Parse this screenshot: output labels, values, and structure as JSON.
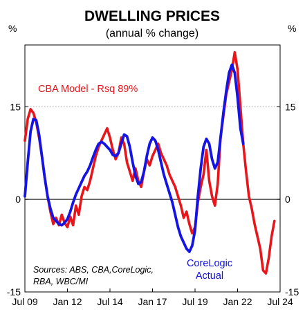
{
  "chart_data": {
    "type": "line",
    "title": "DWELLING PRICES",
    "subtitle": "(annual % change)",
    "ylabel_left": "%",
    "ylabel_right": "%",
    "ylim": [
      -15,
      25
    ],
    "yticks": [
      -15,
      0,
      15
    ],
    "ytick_labels": [
      "-15",
      "0",
      "15"
    ],
    "reference_line": 15,
    "x_start": "2009-07",
    "x_end": "2024-07",
    "xticks": [
      "2009-07",
      "2012-01",
      "2014-07",
      "2017-01",
      "2019-07",
      "2022-01",
      "2024-07"
    ],
    "xtick_labels": [
      "Jul 09",
      "Jan 12",
      "Jul 14",
      "Jan 17",
      "Jul 19",
      "Jan 22",
      "Jul 24"
    ],
    "annotations": {
      "model": "CBA Model - Rsq 89%",
      "actual_line1": "CoreLogic",
      "actual_line2": "Actual",
      "source_line1": "Sources: ABS, CBA,CoreLogic,",
      "source_line2": "RBA, WBC/MI"
    },
    "colors": {
      "model": "#e8161b",
      "actual": "#1414e6",
      "reference": "#a0a0a0"
    },
    "series": [
      {
        "name": "CBA Model - Rsq 89%",
        "color": "#e8161b",
        "points": [
          [
            "2009-07",
            9.5
          ],
          [
            "2009-09",
            13.0
          ],
          [
            "2009-11",
            14.6
          ],
          [
            "2010-01",
            14.0
          ],
          [
            "2010-03",
            12.5
          ],
          [
            "2010-05",
            10.0
          ],
          [
            "2010-07",
            7.0
          ],
          [
            "2010-09",
            3.5
          ],
          [
            "2010-11",
            0.5
          ],
          [
            "2011-01",
            -2.0
          ],
          [
            "2011-03",
            -4.0
          ],
          [
            "2011-05",
            -3.0
          ],
          [
            "2011-07",
            -4.2
          ],
          [
            "2011-09",
            -2.5
          ],
          [
            "2011-11",
            -3.8
          ],
          [
            "2012-01",
            -4.5
          ],
          [
            "2012-03",
            -2.8
          ],
          [
            "2012-05",
            -4.2
          ],
          [
            "2012-07",
            -1.0
          ],
          [
            "2012-09",
            -2.5
          ],
          [
            "2012-11",
            0.5
          ],
          [
            "2013-01",
            2.0
          ],
          [
            "2013-03",
            1.5
          ],
          [
            "2013-05",
            3.0
          ],
          [
            "2013-07",
            5.0
          ],
          [
            "2013-09",
            7.0
          ],
          [
            "2013-11",
            8.5
          ],
          [
            "2014-01",
            9.5
          ],
          [
            "2014-03",
            10.5
          ],
          [
            "2014-05",
            11.5
          ],
          [
            "2014-07",
            10.0
          ],
          [
            "2014-09",
            8.0
          ],
          [
            "2014-11",
            6.5
          ],
          [
            "2015-01",
            7.5
          ],
          [
            "2015-03",
            10.0
          ],
          [
            "2015-05",
            9.0
          ],
          [
            "2015-07",
            6.0
          ],
          [
            "2015-09",
            4.5
          ],
          [
            "2015-11",
            3.0
          ],
          [
            "2016-01",
            5.0
          ],
          [
            "2016-03",
            3.0
          ],
          [
            "2016-05",
            2.0
          ],
          [
            "2016-07",
            4.5
          ],
          [
            "2016-09",
            6.5
          ],
          [
            "2016-11",
            5.5
          ],
          [
            "2017-01",
            7.0
          ],
          [
            "2017-03",
            8.0
          ],
          [
            "2017-05",
            9.0
          ],
          [
            "2017-07",
            7.5
          ],
          [
            "2017-09",
            6.5
          ],
          [
            "2017-11",
            5.5
          ],
          [
            "2018-01",
            4.0
          ],
          [
            "2018-03",
            3.0
          ],
          [
            "2018-05",
            2.0
          ],
          [
            "2018-07",
            0.5
          ],
          [
            "2018-09",
            -1.0
          ],
          [
            "2018-11",
            -3.0
          ],
          [
            "2019-01",
            -2.0
          ],
          [
            "2019-03",
            -4.0
          ],
          [
            "2019-05",
            -5.5
          ],
          [
            "2019-07",
            -4.5
          ],
          [
            "2019-09",
            -0.5
          ],
          [
            "2019-11",
            2.0
          ],
          [
            "2020-01",
            4.0
          ],
          [
            "2020-03",
            8.0
          ],
          [
            "2020-05",
            3.0
          ],
          [
            "2020-07",
            0.5
          ],
          [
            "2020-09",
            -1.0
          ],
          [
            "2020-11",
            2.5
          ],
          [
            "2021-01",
            10.0
          ],
          [
            "2021-03",
            13.5
          ],
          [
            "2021-05",
            17.0
          ],
          [
            "2021-07",
            19.0
          ],
          [
            "2021-09",
            21.0
          ],
          [
            "2021-11",
            23.8
          ],
          [
            "2022-01",
            21.0
          ],
          [
            "2022-03",
            15.0
          ],
          [
            "2022-05",
            9.0
          ],
          [
            "2022-07",
            4.5
          ],
          [
            "2022-09",
            0.5
          ],
          [
            "2022-11",
            -1.5
          ],
          [
            "2023-01",
            -4.0
          ],
          [
            "2023-03",
            -6.0
          ],
          [
            "2023-05",
            -8.0
          ],
          [
            "2023-07",
            -11.5
          ],
          [
            "2023-09",
            -12.0
          ],
          [
            "2023-11",
            -9.5
          ],
          [
            "2024-01",
            -6.0
          ],
          [
            "2024-03",
            -3.5
          ]
        ]
      },
      {
        "name": "CoreLogic Actual",
        "color": "#1414e6",
        "points": [
          [
            "2009-07",
            0.5
          ],
          [
            "2009-09",
            6.0
          ],
          [
            "2009-11",
            11.0
          ],
          [
            "2010-01",
            13.0
          ],
          [
            "2010-03",
            12.8
          ],
          [
            "2010-05",
            10.5
          ],
          [
            "2010-07",
            7.0
          ],
          [
            "2010-09",
            3.5
          ],
          [
            "2010-11",
            0.5
          ],
          [
            "2011-01",
            -1.5
          ],
          [
            "2011-03",
            -3.0
          ],
          [
            "2011-05",
            -3.5
          ],
          [
            "2011-07",
            -4.0
          ],
          [
            "2011-09",
            -4.2
          ],
          [
            "2011-11",
            -3.8
          ],
          [
            "2012-01",
            -3.2
          ],
          [
            "2012-03",
            -2.0
          ],
          [
            "2012-05",
            -0.5
          ],
          [
            "2012-07",
            0.8
          ],
          [
            "2012-09",
            1.8
          ],
          [
            "2012-11",
            2.8
          ],
          [
            "2013-01",
            3.8
          ],
          [
            "2013-03",
            4.5
          ],
          [
            "2013-05",
            5.5
          ],
          [
            "2013-07",
            6.8
          ],
          [
            "2013-09",
            8.0
          ],
          [
            "2013-11",
            9.0
          ],
          [
            "2014-01",
            9.3
          ],
          [
            "2014-03",
            9.0
          ],
          [
            "2014-05",
            8.5
          ],
          [
            "2014-07",
            8.0
          ],
          [
            "2014-09",
            7.2
          ],
          [
            "2014-11",
            7.0
          ],
          [
            "2015-01",
            7.5
          ],
          [
            "2015-03",
            9.0
          ],
          [
            "2015-05",
            10.5
          ],
          [
            "2015-07",
            10.2
          ],
          [
            "2015-09",
            8.5
          ],
          [
            "2015-11",
            6.0
          ],
          [
            "2016-01",
            3.8
          ],
          [
            "2016-03",
            2.5
          ],
          [
            "2016-05",
            2.8
          ],
          [
            "2016-07",
            4.5
          ],
          [
            "2016-09",
            7.0
          ],
          [
            "2016-11",
            9.0
          ],
          [
            "2017-01",
            10.0
          ],
          [
            "2017-03",
            9.5
          ],
          [
            "2017-05",
            8.0
          ],
          [
            "2017-07",
            6.0
          ],
          [
            "2017-09",
            4.0
          ],
          [
            "2017-11",
            2.5
          ],
          [
            "2018-01",
            1.0
          ],
          [
            "2018-03",
            -0.5
          ],
          [
            "2018-05",
            -2.5
          ],
          [
            "2018-07",
            -4.5
          ],
          [
            "2018-09",
            -6.0
          ],
          [
            "2018-11",
            -7.0
          ],
          [
            "2019-01",
            -8.0
          ],
          [
            "2019-03",
            -8.5
          ],
          [
            "2019-05",
            -7.5
          ],
          [
            "2019-07",
            -5.0
          ],
          [
            "2019-09",
            0.5
          ],
          [
            "2019-11",
            5.0
          ],
          [
            "2020-01",
            8.5
          ],
          [
            "2020-03",
            9.8
          ],
          [
            "2020-05",
            9.0
          ],
          [
            "2020-07",
            6.5
          ],
          [
            "2020-09",
            5.0
          ],
          [
            "2020-11",
            6.0
          ],
          [
            "2021-01",
            10.0
          ],
          [
            "2021-03",
            14.0
          ],
          [
            "2021-05",
            17.5
          ],
          [
            "2021-07",
            20.5
          ],
          [
            "2021-09",
            21.8
          ],
          [
            "2021-11",
            20.5
          ],
          [
            "2022-01",
            16.5
          ],
          [
            "2022-03",
            11.5
          ],
          [
            "2022-05",
            9.0
          ]
        ]
      }
    ]
  }
}
